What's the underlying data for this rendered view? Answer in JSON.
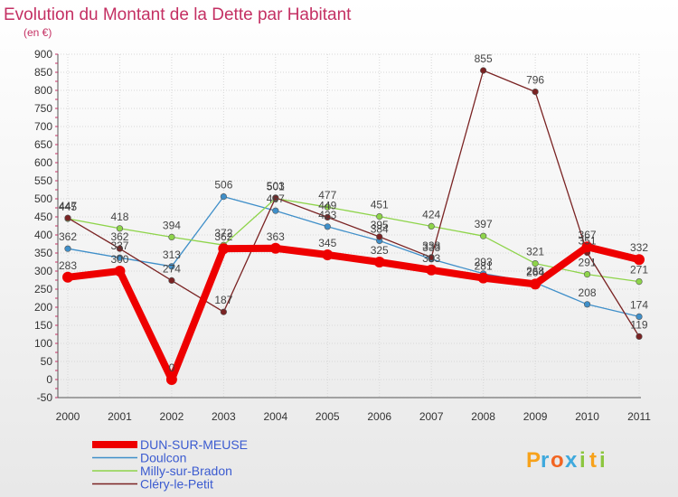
{
  "chart_data": {
    "type": "line",
    "title": "Evolution du Montant de la Dette par Habitant",
    "subtitle": "(en €)",
    "x": [
      "2000",
      "2001",
      "2002",
      "2003",
      "2004",
      "2005",
      "2006",
      "2007",
      "2008",
      "2009",
      "2010",
      "2011"
    ],
    "ylim": [
      -50,
      900
    ],
    "yticks": [
      -50,
      0,
      50,
      100,
      150,
      200,
      250,
      300,
      350,
      400,
      450,
      500,
      550,
      600,
      650,
      700,
      750,
      800,
      850,
      900
    ],
    "grid": true,
    "legend_position": "bottom-left",
    "series": [
      {
        "name": "DUN-SUR-MEUSE",
        "color": "#ee0000",
        "values": [
          283,
          300,
          0,
          362,
          363,
          345,
          325,
          303,
          281,
          264,
          367,
          332
        ]
      },
      {
        "name": "Doulcon",
        "color": "#3f8fc9",
        "values": [
          362,
          337,
          313,
          506,
          467,
          423,
          384,
          333,
          293,
          268,
          208,
          174
        ]
      },
      {
        "name": "Milly-sur-Bradon",
        "color": "#8ed44a",
        "values": [
          445,
          418,
          394,
          372,
          501,
          477,
          451,
          424,
          397,
          321,
          291,
          271
        ]
      },
      {
        "name": "Cléry-le-Petit",
        "color": "#7a2323",
        "values": [
          447,
          362,
          274,
          187,
          503,
          449,
          395,
          338,
          855,
          796,
          351,
          119
        ]
      }
    ],
    "value_labels": [
      {
        "series": 0,
        "values": [
          283,
          300,
          0,
          362,
          363,
          345,
          325,
          303,
          281,
          264,
          367,
          332
        ]
      },
      {
        "series": 1,
        "values": [
          362,
          337,
          313,
          506,
          467,
          423,
          384,
          333,
          293,
          268,
          208,
          174
        ]
      },
      {
        "series": 2,
        "values": [
          445,
          418,
          394,
          372,
          501,
          477,
          451,
          424,
          397,
          321,
          291,
          271
        ]
      },
      {
        "series": 3,
        "values": [
          447,
          362,
          274,
          187,
          503,
          449,
          395,
          338,
          855,
          796,
          351,
          119
        ]
      }
    ]
  },
  "brand": {
    "letters": [
      "P",
      "r",
      "o",
      "x",
      "i",
      "t",
      "i"
    ],
    "colors": [
      "#f7a21b",
      "#3fa9dd",
      "#f26522",
      "#3fa9dd",
      "#8cc63f",
      "#f7a21b",
      "#8cc63f"
    ]
  }
}
